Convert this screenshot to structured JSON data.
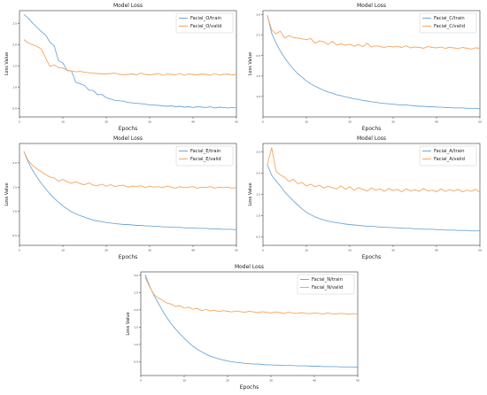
{
  "chart_data": [
    {
      "type": "line",
      "title": "Model Loss",
      "xlabel": "Epochs",
      "ylabel": "Loss Value",
      "xlim": [
        0,
        50
      ],
      "ylim": [
        0.3,
        2.8
      ],
      "xticks": [
        0,
        10,
        20,
        30,
        40,
        50
      ],
      "yticks": [
        0.5,
        1.0,
        1.5,
        2.0,
        2.5
      ],
      "legend_position": "top-right",
      "x": [
        1,
        2,
        3,
        4,
        5,
        6,
        7,
        8,
        9,
        10,
        11,
        12,
        13,
        14,
        15,
        16,
        17,
        18,
        19,
        20,
        21,
        22,
        23,
        24,
        25,
        26,
        27,
        28,
        29,
        30,
        31,
        32,
        33,
        34,
        35,
        36,
        37,
        38,
        39,
        40,
        41,
        42,
        43,
        44,
        45,
        46,
        47,
        48,
        49,
        50
      ],
      "series": [
        {
          "name": "Facial_O/train",
          "color": "#6ea8d8",
          "values": [
            2.71,
            2.63,
            2.51,
            2.41,
            2.31,
            2.23,
            2.06,
            1.97,
            1.62,
            1.57,
            1.39,
            1.38,
            1.11,
            1.08,
            1.04,
            0.93,
            0.92,
            0.82,
            0.83,
            0.75,
            0.72,
            0.69,
            0.68,
            0.67,
            0.64,
            0.63,
            0.62,
            0.61,
            0.6,
            0.58,
            0.58,
            0.57,
            0.56,
            0.55,
            0.56,
            0.54,
            0.55,
            0.53,
            0.54,
            0.52,
            0.54,
            0.53,
            0.52,
            0.54,
            0.51,
            0.53,
            0.52,
            0.51,
            0.52,
            0.51
          ]
        },
        {
          "name": "Facial_O/valid",
          "color": "#f5a55c",
          "values": [
            2.12,
            2.04,
            2.0,
            1.96,
            1.9,
            1.69,
            1.49,
            1.52,
            1.46,
            1.45,
            1.4,
            1.38,
            1.36,
            1.37,
            1.35,
            1.34,
            1.33,
            1.32,
            1.31,
            1.31,
            1.32,
            1.33,
            1.3,
            1.29,
            1.3,
            1.31,
            1.29,
            1.33,
            1.3,
            1.29,
            1.3,
            1.32,
            1.28,
            1.31,
            1.3,
            1.29,
            1.32,
            1.28,
            1.31,
            1.3,
            1.29,
            1.31,
            1.3,
            1.28,
            1.32,
            1.29,
            1.3,
            1.31,
            1.29,
            1.3
          ]
        }
      ]
    },
    {
      "type": "line",
      "title": "Model Loss",
      "xlabel": "Epochs",
      "ylabel": "Loss Value",
      "xlim": [
        0,
        50
      ],
      "ylim": [
        0.5,
        3.1
      ],
      "xticks": [
        0,
        10,
        20,
        30,
        40,
        50
      ],
      "yticks": [
        1.0,
        1.5,
        2.0,
        2.5,
        3.0
      ],
      "legend_position": "top-right",
      "x": [
        1,
        2,
        3,
        4,
        5,
        6,
        7,
        8,
        9,
        10,
        11,
        12,
        13,
        14,
        15,
        16,
        17,
        18,
        19,
        20,
        21,
        22,
        23,
        24,
        25,
        26,
        27,
        28,
        29,
        30,
        31,
        32,
        33,
        34,
        35,
        36,
        37,
        38,
        39,
        40,
        41,
        42,
        43,
        44,
        45,
        46,
        47,
        48,
        49,
        50
      ],
      "series": [
        {
          "name": "Facial_C/train",
          "color": "#6ea8d8",
          "values": [
            2.99,
            2.55,
            2.31,
            2.11,
            1.95,
            1.8,
            1.67,
            1.56,
            1.47,
            1.38,
            1.31,
            1.25,
            1.2,
            1.15,
            1.11,
            1.08,
            1.04,
            1.02,
            0.99,
            0.97,
            0.94,
            0.93,
            0.9,
            0.89,
            0.87,
            0.86,
            0.84,
            0.83,
            0.82,
            0.81,
            0.8,
            0.79,
            0.79,
            0.78,
            0.77,
            0.76,
            0.76,
            0.75,
            0.75,
            0.74,
            0.74,
            0.73,
            0.73,
            0.72,
            0.72,
            0.72,
            0.71,
            0.71,
            0.71,
            0.7
          ]
        },
        {
          "name": "Facial_C/valid",
          "color": "#f5a55c",
          "values": [
            2.98,
            2.63,
            2.53,
            2.6,
            2.43,
            2.49,
            2.44,
            2.43,
            2.41,
            2.39,
            2.42,
            2.3,
            2.36,
            2.34,
            2.27,
            2.35,
            2.26,
            2.29,
            2.25,
            2.28,
            2.23,
            2.27,
            2.22,
            2.3,
            2.21,
            2.24,
            2.22,
            2.2,
            2.23,
            2.21,
            2.22,
            2.2,
            2.24,
            2.19,
            2.21,
            2.2,
            2.18,
            2.22,
            2.2,
            2.19,
            2.21,
            2.18,
            2.2,
            2.19,
            2.17,
            2.2,
            2.18,
            2.16,
            2.19,
            2.18
          ]
        }
      ]
    },
    {
      "type": "line",
      "title": "Model Loss",
      "xlabel": "Epochs",
      "ylabel": "Loss Value",
      "xlim": [
        0,
        50
      ],
      "ylim": [
        0.3,
        2.4
      ],
      "xticks": [
        0,
        10,
        20,
        30,
        40,
        50
      ],
      "yticks": [
        0.5,
        1.0,
        1.5,
        2.0
      ],
      "legend_position": "top-right",
      "x": [
        1,
        2,
        3,
        4,
        5,
        6,
        7,
        8,
        9,
        10,
        11,
        12,
        13,
        14,
        15,
        16,
        17,
        18,
        19,
        20,
        21,
        22,
        23,
        24,
        25,
        26,
        27,
        28,
        29,
        30,
        31,
        32,
        33,
        34,
        35,
        36,
        37,
        38,
        39,
        40,
        41,
        42,
        43,
        44,
        45,
        46,
        47,
        48,
        49,
        50
      ],
      "series": [
        {
          "name": "Facial_E/train",
          "color": "#6ea8d8",
          "values": [
            2.24,
            2.02,
            1.85,
            1.71,
            1.58,
            1.47,
            1.36,
            1.27,
            1.19,
            1.11,
            1.05,
            0.99,
            0.95,
            0.91,
            0.88,
            0.85,
            0.82,
            0.8,
            0.79,
            0.77,
            0.76,
            0.75,
            0.74,
            0.73,
            0.73,
            0.72,
            0.71,
            0.71,
            0.7,
            0.7,
            0.69,
            0.69,
            0.68,
            0.68,
            0.67,
            0.67,
            0.67,
            0.66,
            0.66,
            0.66,
            0.65,
            0.65,
            0.65,
            0.64,
            0.64,
            0.64,
            0.63,
            0.63,
            0.63,
            0.62
          ]
        },
        {
          "name": "Facial_E/valid",
          "color": "#f5a55c",
          "values": [
            2.24,
            2.05,
            1.95,
            1.88,
            1.82,
            1.76,
            1.71,
            1.69,
            1.62,
            1.66,
            1.61,
            1.58,
            1.61,
            1.57,
            1.55,
            1.59,
            1.54,
            1.53,
            1.56,
            1.52,
            1.55,
            1.51,
            1.53,
            1.54,
            1.5,
            1.52,
            1.51,
            1.53,
            1.49,
            1.52,
            1.5,
            1.51,
            1.49,
            1.52,
            1.5,
            1.48,
            1.51,
            1.49,
            1.5,
            1.51,
            1.48,
            1.5,
            1.49,
            1.51,
            1.48,
            1.5,
            1.49,
            1.5,
            1.48,
            1.49
          ]
        }
      ]
    },
    {
      "type": "line",
      "title": "Model Loss",
      "xlabel": "Epochs",
      "ylabel": "Loss Value",
      "xlim": [
        0,
        50
      ],
      "ylim": [
        0.3,
        2.7
      ],
      "xticks": [
        0,
        10,
        20,
        30,
        40,
        50
      ],
      "yticks": [
        0.5,
        1.0,
        1.5,
        2.0,
        2.5
      ],
      "legend_position": "top-right",
      "x": [
        1,
        2,
        3,
        4,
        5,
        6,
        7,
        8,
        9,
        10,
        11,
        12,
        13,
        14,
        15,
        16,
        17,
        18,
        19,
        20,
        21,
        22,
        23,
        24,
        25,
        26,
        27,
        28,
        29,
        30,
        31,
        32,
        33,
        34,
        35,
        36,
        37,
        38,
        39,
        40,
        41,
        42,
        43,
        44,
        45,
        46,
        47,
        48,
        49,
        50
      ],
      "series": [
        {
          "name": "Facial_A/train",
          "color": "#6ea8d8",
          "values": [
            2.2,
            1.95,
            1.82,
            1.7,
            1.56,
            1.45,
            1.35,
            1.25,
            1.16,
            1.08,
            1.02,
            0.97,
            0.93,
            0.9,
            0.87,
            0.85,
            0.83,
            0.82,
            0.8,
            0.79,
            0.78,
            0.77,
            0.76,
            0.75,
            0.75,
            0.74,
            0.73,
            0.73,
            0.72,
            0.72,
            0.71,
            0.71,
            0.7,
            0.7,
            0.69,
            0.69,
            0.68,
            0.68,
            0.68,
            0.67,
            0.67,
            0.66,
            0.66,
            0.66,
            0.65,
            0.65,
            0.65,
            0.64,
            0.64,
            0.64
          ]
        },
        {
          "name": "Facial_A/valid",
          "color": "#f5a55c",
          "values": [
            2.2,
            2.6,
            2.05,
            1.96,
            1.9,
            1.8,
            1.86,
            1.75,
            1.78,
            1.7,
            1.74,
            1.68,
            1.72,
            1.65,
            1.69,
            1.66,
            1.63,
            1.7,
            1.62,
            1.68,
            1.6,
            1.66,
            1.62,
            1.58,
            1.65,
            1.6,
            1.63,
            1.57,
            1.64,
            1.59,
            1.62,
            1.56,
            1.63,
            1.58,
            1.61,
            1.57,
            1.64,
            1.58,
            1.6,
            1.56,
            1.63,
            1.57,
            1.61,
            1.58,
            1.62,
            1.56,
            1.6,
            1.57,
            1.62,
            1.55
          ]
        }
      ]
    },
    {
      "type": "line",
      "title": "Model Loss",
      "xlabel": "Epochs",
      "ylabel": "Loss Value",
      "xlim": [
        0,
        50
      ],
      "ylim": [
        0.1,
        3.1
      ],
      "xticks": [
        0,
        10,
        20,
        30,
        40,
        50
      ],
      "yticks": [
        0.5,
        1.0,
        1.5,
        2.0,
        2.5,
        3.0
      ],
      "legend_position": "top-right",
      "x": [
        1,
        2,
        3,
        4,
        5,
        6,
        7,
        8,
        9,
        10,
        11,
        12,
        13,
        14,
        15,
        16,
        17,
        18,
        19,
        20,
        21,
        22,
        23,
        24,
        25,
        26,
        27,
        28,
        29,
        30,
        31,
        32,
        33,
        34,
        35,
        36,
        37,
        38,
        39,
        40,
        41,
        42,
        43,
        44,
        45,
        46,
        47,
        48,
        49,
        50
      ],
      "series": [
        {
          "name": "Facial_N/train",
          "color": "#6ea8d8",
          "values": [
            3.02,
            2.7,
            2.43,
            2.2,
            1.98,
            1.78,
            1.6,
            1.45,
            1.31,
            1.18,
            1.06,
            0.95,
            0.86,
            0.79,
            0.72,
            0.66,
            0.62,
            0.58,
            0.55,
            0.52,
            0.5,
            0.48,
            0.47,
            0.45,
            0.44,
            0.43,
            0.43,
            0.42,
            0.41,
            0.41,
            0.4,
            0.4,
            0.39,
            0.39,
            0.39,
            0.38,
            0.38,
            0.38,
            0.37,
            0.37,
            0.37,
            0.36,
            0.36,
            0.36,
            0.36,
            0.35,
            0.35,
            0.35,
            0.35,
            0.34
          ]
        },
        {
          "name": "Facial_N/valid",
          "color": "#f5a55c",
          "values": [
            2.95,
            2.68,
            2.45,
            2.35,
            2.28,
            2.2,
            2.17,
            2.1,
            2.12,
            2.05,
            2.08,
            2.02,
            2.04,
            1.98,
            2.01,
            1.97,
            1.99,
            1.95,
            1.98,
            1.96,
            1.94,
            1.97,
            1.95,
            1.93,
            1.96,
            1.94,
            1.92,
            1.95,
            1.93,
            1.91,
            1.94,
            1.92,
            1.9,
            1.93,
            1.91,
            1.9,
            1.92,
            1.9,
            1.89,
            1.91,
            1.9,
            1.88,
            1.91,
            1.89,
            1.88,
            1.9,
            1.89,
            1.87,
            1.89,
            1.88
          ]
        }
      ]
    }
  ]
}
